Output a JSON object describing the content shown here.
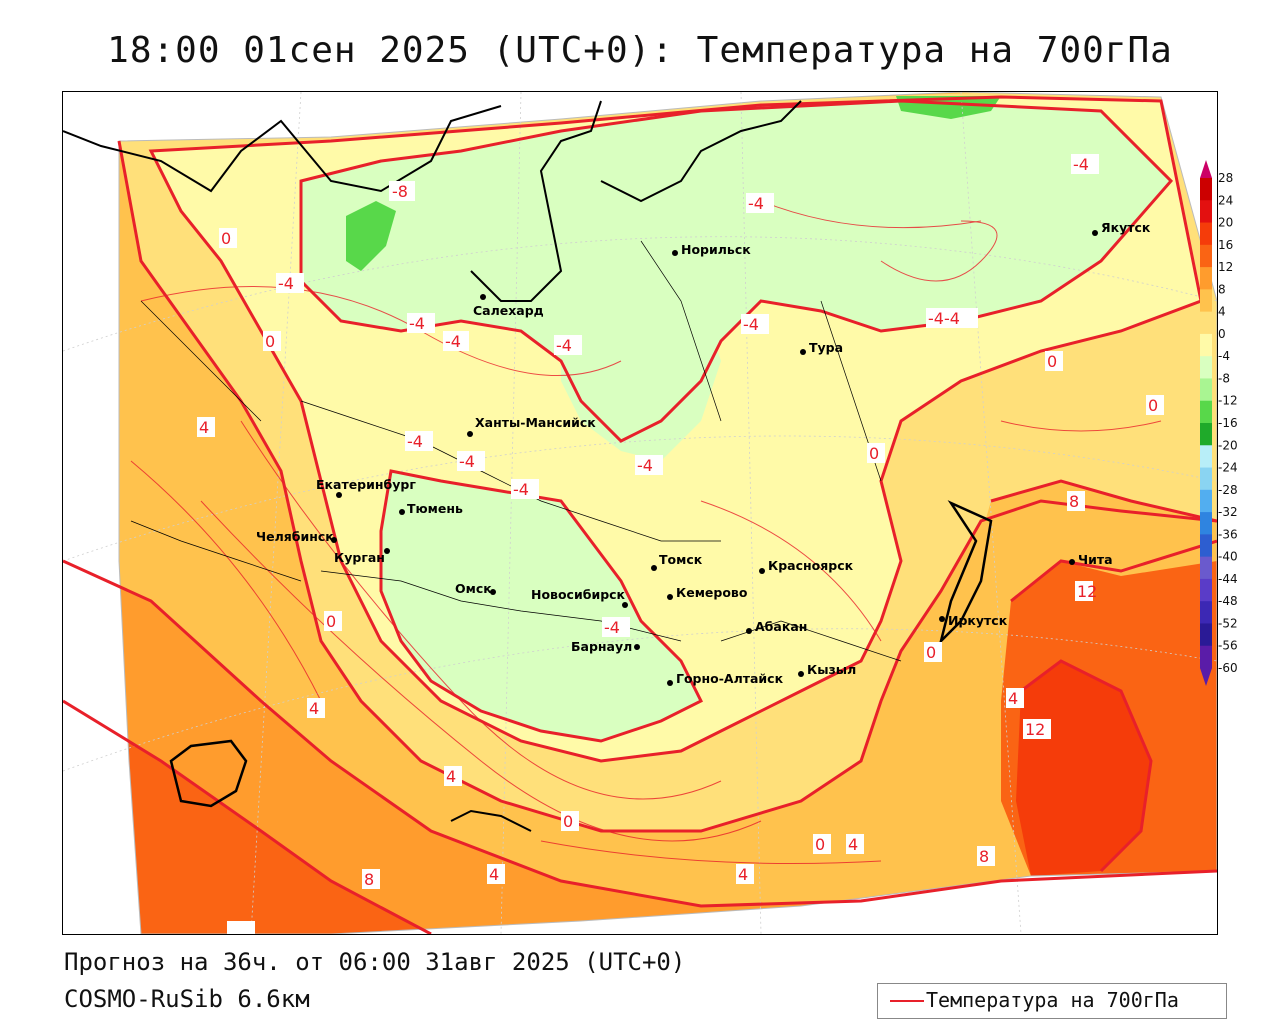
{
  "title": "18:00 01сен 2025 (UTC+0): Температура на 700гПа",
  "footer": {
    "forecast": "Прогноз на 36ч. от 06:00 31авг 2025 (UTC+0)",
    "model": "COSMO-RuSib 6.6км"
  },
  "legend": {
    "label": "Температура на 700гПа",
    "color": "#e8202a"
  },
  "colorscale": {
    "labels": [
      "28",
      "24",
      "20",
      "16",
      "12",
      "8",
      "4",
      "0",
      "-4",
      "-8",
      "-12",
      "-16",
      "-20",
      "-24",
      "-28",
      "-32",
      "-36",
      "-40",
      "-44",
      "-48",
      "-52",
      "-56",
      "-60"
    ],
    "colors": [
      "#cc0066",
      "#cc0000",
      "#e31010",
      "#f53c0a",
      "#fa6414",
      "#ff9c2d",
      "#ffc24d",
      "#ffe07a",
      "#fffaa8",
      "#d9ffc0",
      "#a9f592",
      "#58d84a",
      "#1faa2a",
      "#b8eef8",
      "#8ad4f2",
      "#52aef0",
      "#2f84e0",
      "#2d5ed0",
      "#6a5acd",
      "#5a3cc8",
      "#3c28b4",
      "#2a1a96",
      "#5a1ca8"
    ]
  },
  "cities": [
    {
      "name": "Якутск"
    },
    {
      "name": "Норильск"
    },
    {
      "name": "Салехард"
    },
    {
      "name": "Тура"
    },
    {
      "name": "Ханты-Мансийск"
    },
    {
      "name": "Екатеринбург"
    },
    {
      "name": "Тюмень"
    },
    {
      "name": "Челябинск"
    },
    {
      "name": "Курган"
    },
    {
      "name": "Омск"
    },
    {
      "name": "Новосибирск"
    },
    {
      "name": "Томск"
    },
    {
      "name": "Кемерово"
    },
    {
      "name": "Красноярск"
    },
    {
      "name": "Барнаул"
    },
    {
      "name": "Абакан"
    },
    {
      "name": "Горно-Алтайск"
    },
    {
      "name": "Кызыл"
    },
    {
      "name": "Иркутск"
    },
    {
      "name": "Чита"
    }
  ],
  "isolines": [
    "-8",
    "-4",
    "-4",
    "-4",
    "-4",
    "-4",
    "-4",
    "-4",
    "-4",
    "-4",
    "-4",
    "-4",
    "-4",
    "-4-4",
    "0",
    "0",
    "0",
    "0",
    "0",
    "0",
    "0",
    "0",
    "0",
    "4",
    "4",
    "4",
    "4",
    "4",
    "4",
    "4",
    "8",
    "8",
    "8",
    "12",
    "12"
  ]
}
